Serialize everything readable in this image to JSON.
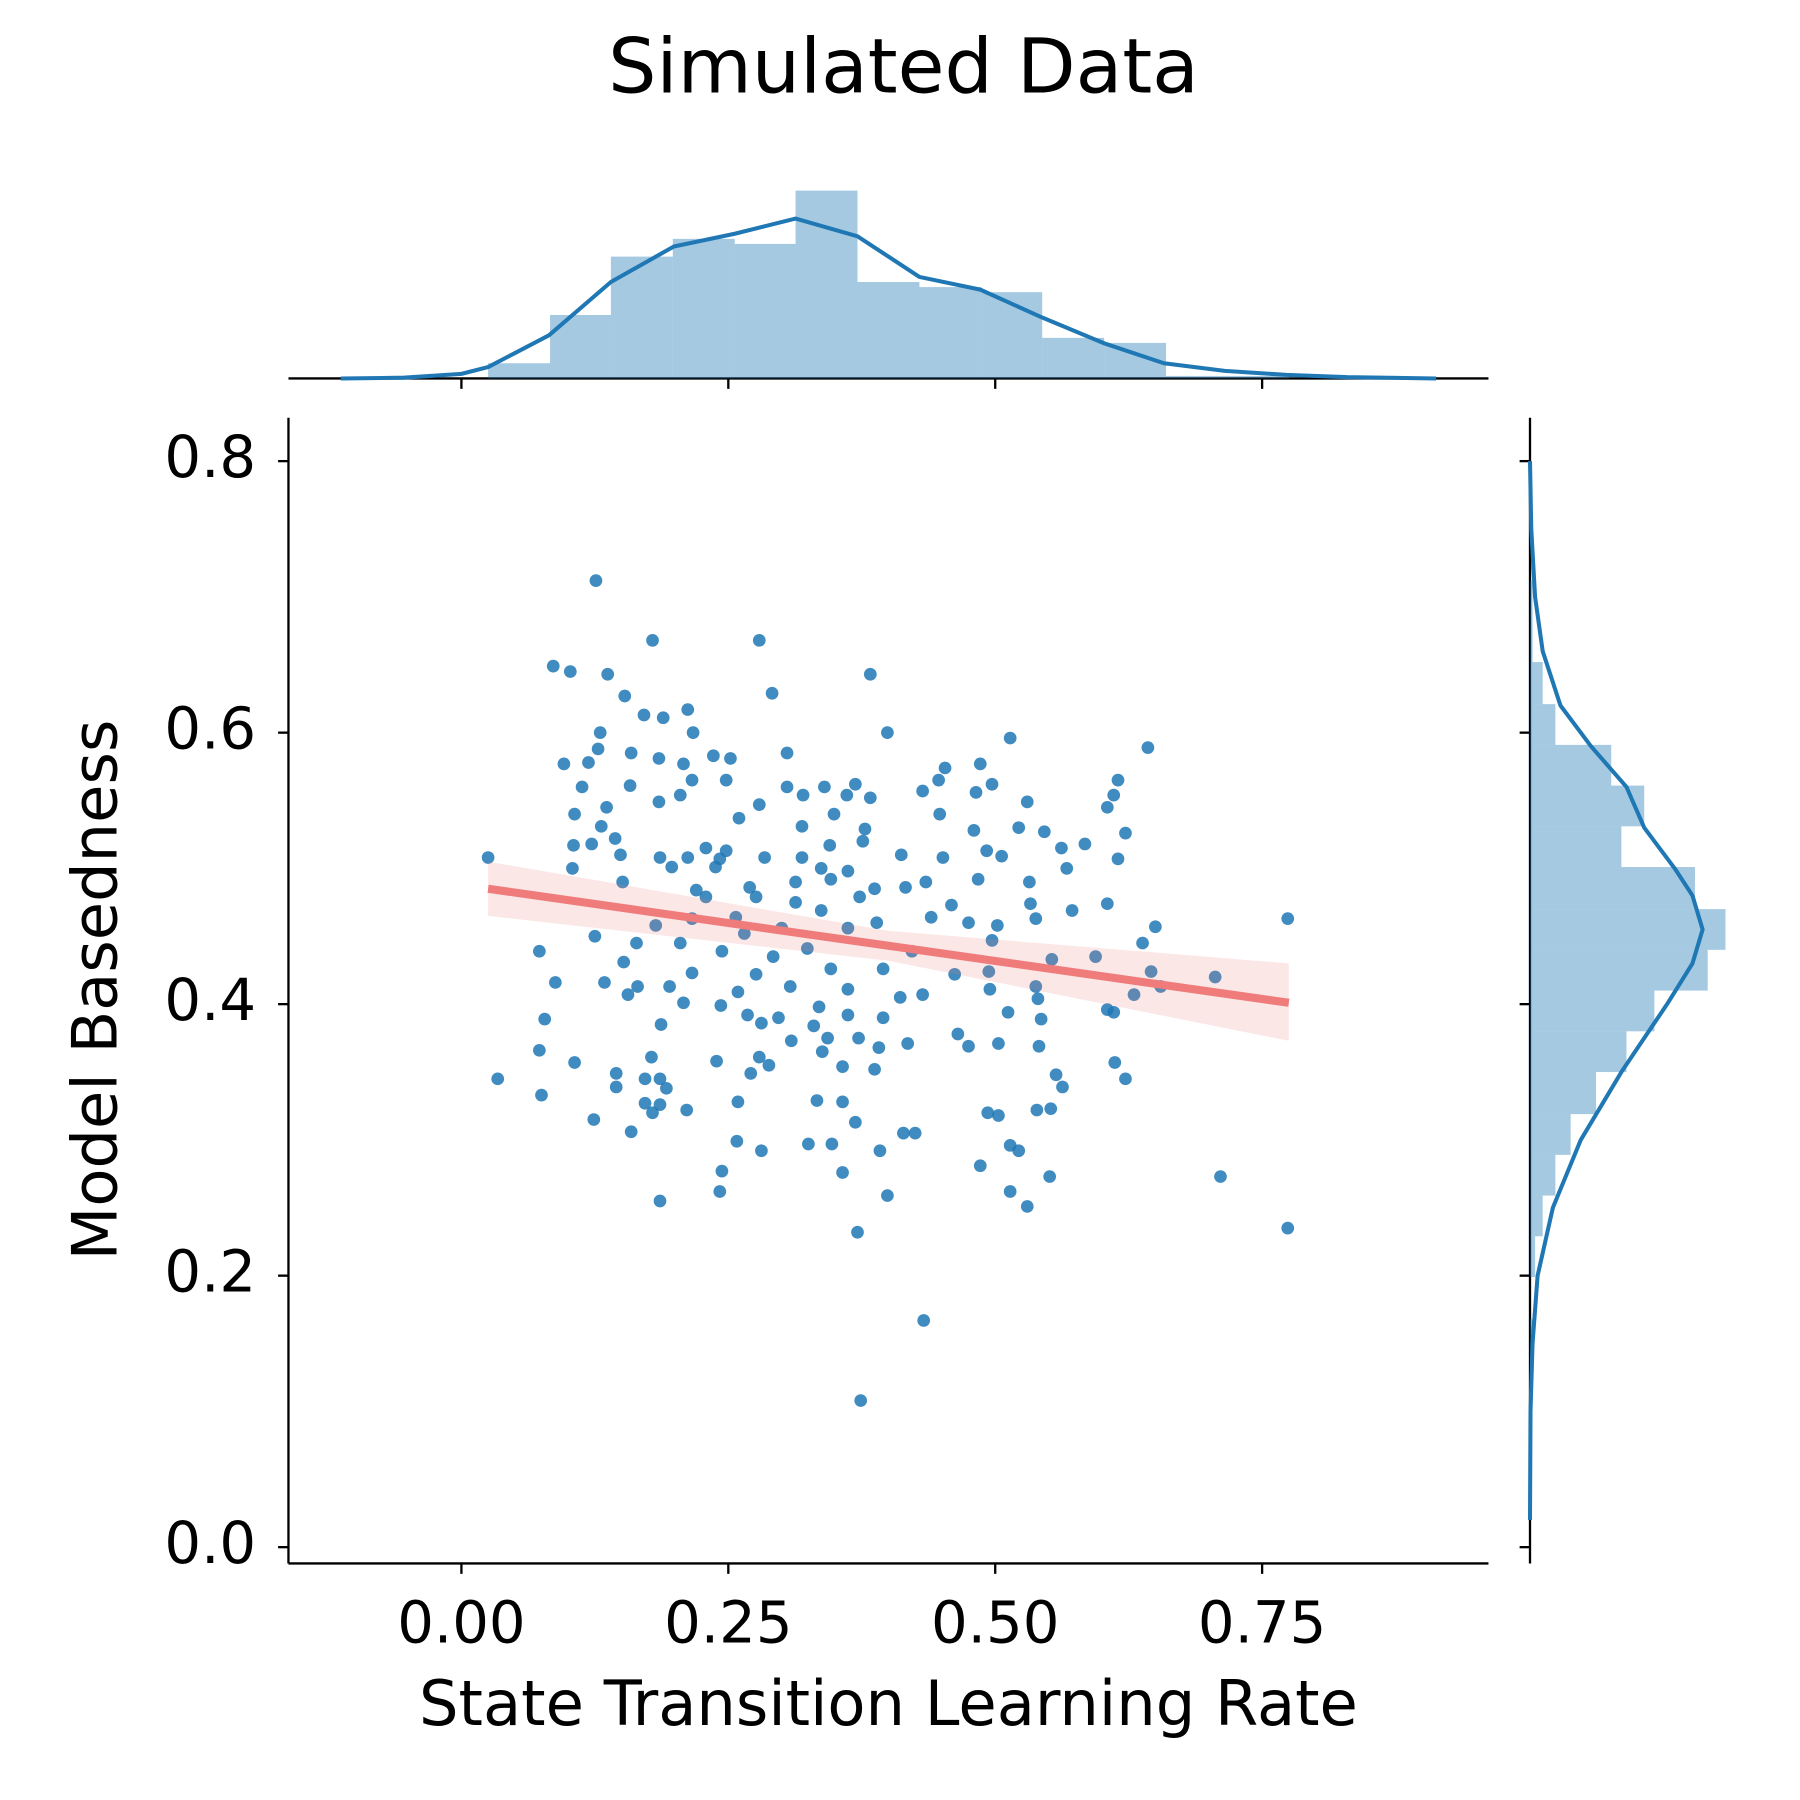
{
  "chart_data": [
    {
      "type": "scatter",
      "title": "Simulated Data",
      "x_label": "State Transition Learning Rate",
      "y_label": "Model Basedness",
      "xlim": [
        -0.162,
        0.962
      ],
      "ylim": [
        -0.012,
        0.832
      ],
      "xticks": [
        {
          "value": 0,
          "label": "0.00"
        },
        {
          "value": 0.25,
          "label": "0.25"
        },
        {
          "value": 0.5,
          "label": "0.50"
        },
        {
          "value": 0.75,
          "label": "0.75"
        }
      ],
      "yticks": [
        {
          "value": 0,
          "label": "0.0"
        },
        0.2,
        0.4,
        0.6,
        0.8
      ],
      "color": "#1f77b4",
      "x": [
        0.126,
        0.179,
        0.279,
        0.086,
        0.102,
        0.137,
        0.383,
        0.153,
        0.291,
        0.171,
        0.189,
        0.212,
        0.13,
        0.217,
        0.399,
        0.514,
        0.643,
        0.305,
        0.236,
        0.159,
        0.128,
        0.096,
        0.119,
        0.185,
        0.208,
        0.252,
        0.453,
        0.486,
        0.615,
        0.113,
        0.158,
        0.216,
        0.248,
        0.305,
        0.34,
        0.369,
        0.447,
        0.497,
        0.611,
        0.205,
        0.185,
        0.32,
        0.361,
        0.383,
        0.432,
        0.482,
        0.53,
        0.136,
        0.106,
        0.279,
        0.349,
        0.448,
        0.605,
        0.131,
        0.26,
        0.319,
        0.378,
        0.522,
        0.546,
        0.622,
        0.105,
        0.122,
        0.144,
        0.229,
        0.248,
        0.345,
        0.376,
        0.48,
        0.562,
        0.584,
        0.025,
        0.149,
        0.186,
        0.212,
        0.242,
        0.284,
        0.319,
        0.412,
        0.451,
        0.492,
        0.506,
        0.615,
        0.104,
        0.197,
        0.238,
        0.337,
        0.362,
        0.567,
        0.151,
        0.22,
        0.27,
        0.313,
        0.346,
        0.387,
        0.435,
        0.484,
        0.532,
        0.605,
        0.229,
        0.276,
        0.373,
        0.416,
        0.459,
        0.533,
        0.572,
        0.313,
        0.337,
        0.257,
        0.216,
        0.182,
        0.774,
        0.538,
        0.475,
        0.502,
        0.44,
        0.389,
        0.362,
        0.3,
        0.265,
        0.125,
        0.65,
        0.164,
        0.205,
        0.324,
        0.422,
        0.497,
        0.073,
        0.638,
        0.244,
        0.292,
        0.553,
        0.594,
        0.152,
        0.216,
        0.276,
        0.346,
        0.395,
        0.462,
        0.494,
        0.646,
        0.706,
        0.088,
        0.134,
        0.165,
        0.195,
        0.259,
        0.308,
        0.362,
        0.432,
        0.495,
        0.538,
        0.63,
        0.655,
        0.156,
        0.411,
        0.208,
        0.243,
        0.335,
        0.54,
        0.605,
        0.611,
        0.268,
        0.297,
        0.362,
        0.395,
        0.512,
        0.543,
        0.078,
        0.187,
        0.281,
        0.33,
        0.465,
        0.309,
        0.343,
        0.372,
        0.475,
        0.503,
        0.541,
        0.418,
        0.073,
        0.338,
        0.391,
        0.106,
        0.178,
        0.239,
        0.279,
        0.288,
        0.612,
        0.145,
        0.172,
        0.186,
        0.271,
        0.357,
        0.387,
        0.557,
        0.034,
        0.622,
        0.145,
        0.192,
        0.563,
        0.075,
        0.333,
        0.357,
        0.172,
        0.259,
        0.186,
        0.179,
        0.211,
        0.539,
        0.552,
        0.493,
        0.503,
        0.124,
        0.369,
        0.159,
        0.414,
        0.425,
        0.258,
        0.325,
        0.347,
        0.514,
        0.522,
        0.281,
        0.392,
        0.486,
        0.244,
        0.357,
        0.551,
        0.711,
        0.242,
        0.399,
        0.514,
        0.53,
        0.186,
        0.774,
        0.371,
        0.433,
        0.374
      ],
      "values": [
        0.712,
        0.668,
        0.668,
        0.649,
        0.645,
        0.643,
        0.643,
        0.627,
        0.629,
        0.613,
        0.611,
        0.617,
        0.6,
        0.6,
        0.6,
        0.596,
        0.589,
        0.585,
        0.583,
        0.585,
        0.588,
        0.577,
        0.578,
        0.581,
        0.577,
        0.581,
        0.574,
        0.577,
        0.565,
        0.56,
        0.561,
        0.565,
        0.565,
        0.56,
        0.56,
        0.562,
        0.565,
        0.562,
        0.554,
        0.554,
        0.549,
        0.554,
        0.554,
        0.552,
        0.557,
        0.556,
        0.549,
        0.545,
        0.54,
        0.547,
        0.54,
        0.54,
        0.545,
        0.531,
        0.537,
        0.531,
        0.529,
        0.53,
        0.527,
        0.526,
        0.517,
        0.518,
        0.522,
        0.515,
        0.513,
        0.517,
        0.52,
        0.528,
        0.515,
        0.518,
        0.508,
        0.51,
        0.508,
        0.508,
        0.507,
        0.508,
        0.508,
        0.51,
        0.508,
        0.513,
        0.509,
        0.507,
        0.5,
        0.501,
        0.501,
        0.5,
        0.498,
        0.5,
        0.49,
        0.484,
        0.486,
        0.49,
        0.492,
        0.485,
        0.49,
        0.492,
        0.49,
        0.474,
        0.479,
        0.479,
        0.479,
        0.486,
        0.473,
        0.474,
        0.469,
        0.475,
        0.469,
        0.464,
        0.463,
        0.458,
        0.463,
        0.463,
        0.46,
        0.458,
        0.464,
        0.46,
        0.456,
        0.456,
        0.452,
        0.45,
        0.457,
        0.445,
        0.445,
        0.441,
        0.439,
        0.447,
        0.439,
        0.445,
        0.439,
        0.435,
        0.433,
        0.435,
        0.431,
        0.423,
        0.422,
        0.426,
        0.426,
        0.422,
        0.424,
        0.424,
        0.42,
        0.416,
        0.416,
        0.413,
        0.413,
        0.409,
        0.413,
        0.411,
        0.407,
        0.411,
        0.413,
        0.407,
        0.413,
        0.407,
        0.405,
        0.401,
        0.399,
        0.398,
        0.404,
        0.396,
        0.394,
        0.392,
        0.39,
        0.392,
        0.39,
        0.394,
        0.389,
        0.389,
        0.385,
        0.386,
        0.384,
        0.378,
        0.373,
        0.375,
        0.375,
        0.369,
        0.371,
        0.369,
        0.371,
        0.366,
        0.365,
        0.368,
        0.357,
        0.361,
        0.358,
        0.361,
        0.355,
        0.357,
        0.349,
        0.345,
        0.345,
        0.349,
        0.354,
        0.352,
        0.348,
        0.345,
        0.345,
        0.339,
        0.338,
        0.339,
        0.333,
        0.329,
        0.328,
        0.327,
        0.328,
        0.326,
        0.32,
        0.322,
        0.322,
        0.323,
        0.32,
        0.318,
        0.315,
        0.313,
        0.306,
        0.305,
        0.305,
        0.299,
        0.297,
        0.297,
        0.296,
        0.292,
        0.292,
        0.292,
        0.281,
        0.277,
        0.276,
        0.273,
        0.273,
        0.262,
        0.259,
        0.262,
        0.251,
        0.255,
        0.235,
        0.232,
        0.167,
        0.108
      ],
      "regression": {
        "color": "#ef7b7b",
        "x": [
          0.025,
          0.4,
          0.775
        ],
        "values": [
          0.485,
          0.443,
          0.401
        ],
        "ci_low": [
          0.465,
          0.432,
          0.373
        ],
        "ci_high": [
          0.505,
          0.454,
          0.43
        ]
      }
    },
    {
      "type": "histogram",
      "orientation": "vertical",
      "color": "#1f77b4",
      "bins": [
        0.025,
        0.083,
        0.14,
        0.198,
        0.256,
        0.313,
        0.371,
        0.429,
        0.487,
        0.544,
        0.602,
        0.66,
        0.717,
        0.775
      ],
      "counts": [
        6,
        25,
        48,
        55,
        53,
        74,
        38,
        36,
        34,
        16,
        14,
        1,
        1
      ],
      "kde_x": [
        -0.113,
        -0.054,
        0,
        0.025,
        0.082,
        0.14,
        0.199,
        0.256,
        0.313,
        0.371,
        0.429,
        0.486,
        0.544,
        0.601,
        0.658,
        0.715,
        0.773,
        0.83,
        0.913
      ],
      "kde": [
        0,
        0.3,
        1.8,
        4.5,
        17,
        38,
        52,
        57,
        63,
        56,
        40,
        35,
        24,
        14,
        6,
        3,
        1.4,
        0.5,
        0
      ]
    },
    {
      "type": "histogram",
      "orientation": "horizontal",
      "color": "#1f77b4",
      "bins": [
        0.108,
        0.138,
        0.168,
        0.199,
        0.229,
        0.259,
        0.289,
        0.319,
        0.35,
        0.38,
        0.41,
        0.44,
        0.47,
        0.501,
        0.531,
        0.561,
        0.591,
        0.621,
        0.652,
        0.682,
        0.712
      ],
      "counts": [
        1,
        1,
        0,
        2,
        5,
        10,
        16,
        26,
        38,
        49,
        70,
        77,
        65,
        36,
        45,
        32,
        10,
        5,
        1,
        1
      ],
      "kde_x": [
        0.02,
        0.1,
        0.15,
        0.2,
        0.25,
        0.3,
        0.35,
        0.4,
        0.43,
        0.455,
        0.48,
        0.5,
        0.53,
        0.56,
        0.59,
        0.62,
        0.66,
        0.7,
        0.75,
        0.8
      ],
      "kde": [
        0,
        0.2,
        1,
        3,
        9,
        20,
        36,
        54,
        64,
        68,
        64,
        57,
        45,
        38,
        24,
        12,
        5,
        2,
        0.5,
        0
      ]
    }
  ]
}
